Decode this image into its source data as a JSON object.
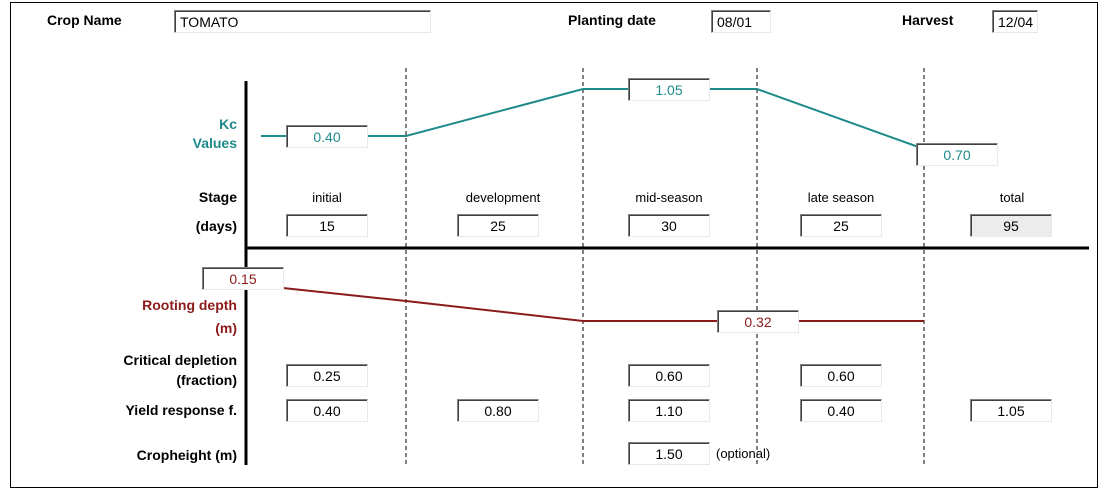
{
  "header": {
    "crop_name_label": "Crop Name",
    "crop_name_value": "TOMATO",
    "planting_date_label": "Planting date",
    "planting_date_value": "08/01",
    "harvest_label": "Harvest",
    "harvest_value": "12/04"
  },
  "kc": {
    "label_line1": "Kc",
    "label_line2": "Values",
    "initial": "0.40",
    "mid": "1.05",
    "end": "0.70",
    "color": "#1f8a8a"
  },
  "stage": {
    "label_line1": "Stage",
    "label_line2": "(days)",
    "names": [
      "initial",
      "development",
      "mid-season",
      "late season",
      "total"
    ],
    "days": [
      "15",
      "25",
      "30",
      "25",
      "95"
    ]
  },
  "rooting": {
    "label_line1": "Rooting depth",
    "label_line2": "(m)",
    "min": "0.15",
    "max": "0.32",
    "color": "#8b1a1a"
  },
  "critical_depletion": {
    "label_line1": "Critical depletion",
    "label_line2": "(fraction)",
    "initial": "0.25",
    "mid": "0.60",
    "late": "0.60"
  },
  "yield_response": {
    "label": "Yield response f.",
    "initial": "0.40",
    "development": "0.80",
    "mid": "1.10",
    "late": "0.40",
    "total": "1.05"
  },
  "cropheight": {
    "label": "Cropheight (m)",
    "value": "1.50",
    "note": "(optional)"
  }
}
